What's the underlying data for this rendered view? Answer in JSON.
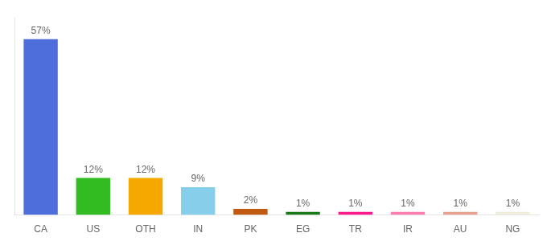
{
  "chart_data": {
    "type": "bar",
    "categories": [
      "CA",
      "US",
      "OTH",
      "IN",
      "PK",
      "EG",
      "TR",
      "IR",
      "AU",
      "NG"
    ],
    "values": [
      57,
      12,
      12,
      9,
      2,
      1,
      1,
      1,
      1,
      1
    ],
    "value_labels": [
      "57%",
      "12%",
      "12%",
      "9%",
      "2%",
      "1%",
      "1%",
      "1%",
      "1%",
      "1%"
    ],
    "colors": [
      "#4d6edb",
      "#33bb22",
      "#f5a800",
      "#87ceeb",
      "#c05a10",
      "#1a7a1a",
      "#ff1a8c",
      "#ff80b0",
      "#e8a090",
      "#f0eedc"
    ],
    "ylim": [
      0,
      64
    ],
    "data_labels": true,
    "tick_labels": "x",
    "grid": false
  }
}
